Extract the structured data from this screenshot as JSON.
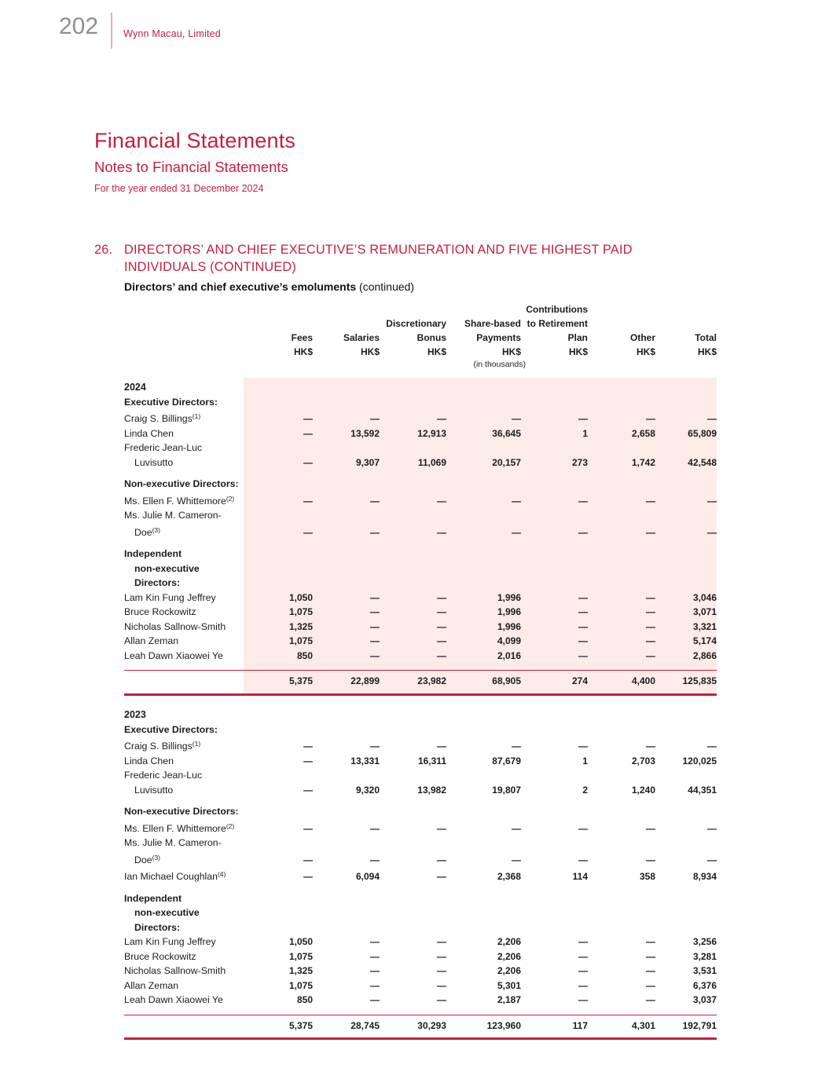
{
  "accent_color": "#c41f3e",
  "pink_bg": "#fcebe7",
  "page_header": {
    "page_number": "202",
    "company": "Wynn Macau, Limited"
  },
  "titles": {
    "main": "Financial Statements",
    "sub": "Notes to Financial Statements",
    "period": "For the year ended 31 December 2024"
  },
  "section": {
    "number": "26.",
    "heading": "DIRECTORS’ AND CHIEF EXECUTIVE’S REMUNERATION AND FIVE HIGHEST PAID INDIVIDUALS",
    "heading_suffix": "(CONTINUED)",
    "subheading": "Directors’ and chief executive’s emoluments",
    "subheading_suffix": "(continued)"
  },
  "table": {
    "header_columns": [
      {
        "lines": [
          "Fees",
          "HK$"
        ],
        "subnote": ""
      },
      {
        "lines": [
          "Salaries",
          "HK$"
        ],
        "subnote": ""
      },
      {
        "lines": [
          "Discretionary",
          "Bonus",
          "HK$"
        ],
        "subnote": ""
      },
      {
        "lines": [
          "Share-based",
          "Payments",
          "HK$"
        ],
        "subnote": "(in thousands)"
      },
      {
        "lines": [
          "Contributions",
          "to Retirement",
          "Plan",
          "HK$"
        ],
        "subnote": ""
      },
      {
        "lines": [
          "Other",
          "HK$"
        ],
        "subnote": ""
      },
      {
        "lines": [
          "Total",
          "HK$"
        ],
        "subnote": ""
      }
    ],
    "sections": [
      {
        "year": "2024",
        "highlight": true,
        "rows": [
          {
            "t": "sec",
            "label": "Executive Directors:"
          },
          {
            "t": "row",
            "label": "Craig S. Billings",
            "sup": "(1)",
            "cells": [
              "—",
              "—",
              "—",
              "—",
              "—",
              "—",
              "—"
            ]
          },
          {
            "t": "row",
            "label": "Linda Chen",
            "cells": [
              "—",
              "13,592",
              "12,913",
              "36,645",
              "1",
              "2,658",
              "65,809"
            ]
          },
          {
            "t": "cont",
            "label": "Frederic Jean-Luc"
          },
          {
            "t": "row",
            "label": "Luvisutto",
            "indent": 1,
            "cells": [
              "—",
              "9,307",
              "11,069",
              "20,157",
              "273",
              "1,742",
              "42,548"
            ]
          },
          {
            "t": "gap"
          },
          {
            "t": "sec",
            "label": "Non-executive Directors:"
          },
          {
            "t": "row",
            "label": "Ms. Ellen F. Whittemore",
            "sup": "(2)",
            "cells": [
              "—",
              "—",
              "—",
              "—",
              "—",
              "—",
              "—"
            ]
          },
          {
            "t": "cont",
            "label": "Ms. Julie M. Cameron-"
          },
          {
            "t": "row",
            "label": "Doe",
            "sup": "(3)",
            "indent": 1,
            "cells": [
              "—",
              "—",
              "—",
              "—",
              "—",
              "—",
              "—"
            ]
          },
          {
            "t": "gap"
          },
          {
            "t": "sec",
            "label": "Independent"
          },
          {
            "t": "sec",
            "label": "non-executive",
            "indent": 1
          },
          {
            "t": "sec",
            "label": "Directors:",
            "indent": 1
          },
          {
            "t": "row",
            "label": "Lam Kin Fung Jeffrey",
            "cells": [
              "1,050",
              "—",
              "—",
              "1,996",
              "—",
              "—",
              "3,046"
            ]
          },
          {
            "t": "row",
            "label": "Bruce Rockowitz",
            "cells": [
              "1,075",
              "—",
              "—",
              "1,996",
              "—",
              "—",
              "3,071"
            ]
          },
          {
            "t": "row",
            "label": "Nicholas Sallnow-Smith",
            "cells": [
              "1,325",
              "—",
              "—",
              "1,996",
              "—",
              "—",
              "3,321"
            ]
          },
          {
            "t": "row",
            "label": "Allan Zeman",
            "cells": [
              "1,075",
              "—",
              "—",
              "4,099",
              "—",
              "—",
              "5,174"
            ]
          },
          {
            "t": "row",
            "label": "Leah Dawn Xiaowei Ye",
            "cells": [
              "850",
              "—",
              "—",
              "2,016",
              "—",
              "—",
              "2,866"
            ]
          },
          {
            "t": "gap"
          },
          {
            "t": "total",
            "cells": [
              "5,375",
              "22,899",
              "23,982",
              "68,905",
              "274",
              "4,400",
              "125,835"
            ]
          }
        ]
      },
      {
        "year": "2023",
        "highlight": false,
        "rows": [
          {
            "t": "sec",
            "label": "Executive Directors:"
          },
          {
            "t": "row",
            "label": "Craig S. Billings",
            "sup": "(1)",
            "cells": [
              "—",
              "—",
              "—",
              "—",
              "—",
              "—",
              "—"
            ]
          },
          {
            "t": "row",
            "label": "Linda Chen",
            "cells": [
              "—",
              "13,331",
              "16,311",
              "87,679",
              "1",
              "2,703",
              "120,025"
            ]
          },
          {
            "t": "cont",
            "label": "Frederic Jean-Luc"
          },
          {
            "t": "row",
            "label": "Luvisutto",
            "indent": 1,
            "cells": [
              "—",
              "9,320",
              "13,982",
              "19,807",
              "2",
              "1,240",
              "44,351"
            ]
          },
          {
            "t": "gap"
          },
          {
            "t": "sec",
            "label": "Non-executive Directors:"
          },
          {
            "t": "row",
            "label": "Ms. Ellen F. Whittemore",
            "sup": "(2)",
            "cells": [
              "—",
              "—",
              "—",
              "—",
              "—",
              "—",
              "—"
            ]
          },
          {
            "t": "cont",
            "label": "Ms. Julie M. Cameron-"
          },
          {
            "t": "row",
            "label": "Doe",
            "sup": "(3)",
            "indent": 1,
            "cells": [
              "—",
              "—",
              "—",
              "—",
              "—",
              "—",
              "—"
            ]
          },
          {
            "t": "row",
            "label": "Ian Michael Coughlan",
            "sup": "(4)",
            "cells": [
              "—",
              "6,094",
              "—",
              "2,368",
              "114",
              "358",
              "8,934"
            ]
          },
          {
            "t": "gap"
          },
          {
            "t": "sec",
            "label": "Independent"
          },
          {
            "t": "sec",
            "label": "non-executive",
            "indent": 1
          },
          {
            "t": "sec",
            "label": "Directors:",
            "indent": 1
          },
          {
            "t": "row",
            "label": "Lam Kin Fung Jeffrey",
            "cells": [
              "1,050",
              "—",
              "—",
              "2,206",
              "—",
              "—",
              "3,256"
            ]
          },
          {
            "t": "row",
            "label": "Bruce Rockowitz",
            "cells": [
              "1,075",
              "—",
              "—",
              "2,206",
              "—",
              "—",
              "3,281"
            ]
          },
          {
            "t": "row",
            "label": "Nicholas Sallnow-Smith",
            "cells": [
              "1,325",
              "—",
              "—",
              "2,206",
              "—",
              "—",
              "3,531"
            ]
          },
          {
            "t": "row",
            "label": "Allan Zeman",
            "cells": [
              "1,075",
              "—",
              "—",
              "5,301",
              "—",
              "—",
              "6,376"
            ]
          },
          {
            "t": "row",
            "label": "Leah Dawn Xiaowei Ye",
            "cells": [
              "850",
              "—",
              "—",
              "2,187",
              "—",
              "—",
              "3,037"
            ]
          },
          {
            "t": "gap"
          },
          {
            "t": "total",
            "cells": [
              "5,375",
              "28,745",
              "30,293",
              "123,960",
              "117",
              "4,301",
              "192,791"
            ]
          }
        ]
      }
    ]
  }
}
